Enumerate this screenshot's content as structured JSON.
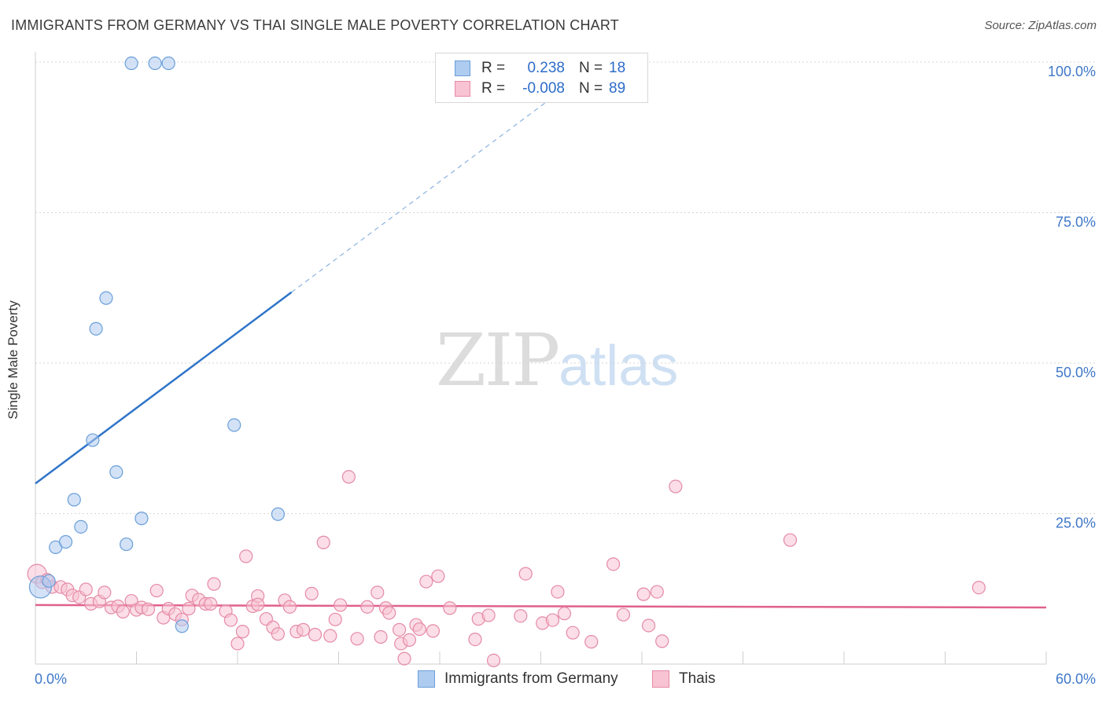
{
  "title": "IMMIGRANTS FROM GERMANY VS THAI SINGLE MALE POVERTY CORRELATION CHART",
  "source": "Source: ZipAtlas.com",
  "watermark": {
    "zip": "ZIP",
    "atlas": "atlas"
  },
  "legend": {
    "rows": [
      {
        "r_label": "R =",
        "r_value": "0.238",
        "n_label": "N =",
        "n_value": "18",
        "color": "#aecbf0",
        "border": "#6a9fd8"
      },
      {
        "r_label": "R =",
        "r_value": "-0.008",
        "n_label": "N =",
        "n_value": "89",
        "color": "#f8c3d3",
        "border": "#e58aa6"
      }
    ]
  },
  "bottom_legend": [
    {
      "label": "Immigrants from Germany",
      "color": "#aecbf0",
      "border": "#6a9fd8"
    },
    {
      "label": "Thais",
      "color": "#f8c3d3",
      "border": "#e58aa6"
    }
  ],
  "chart_data": {
    "type": "scatter",
    "title": "IMMIGRANTS FROM GERMANY VS THAI SINGLE MALE POVERTY CORRELATION CHART",
    "xlabel": "",
    "ylabel": "Single Male Poverty",
    "xlim": [
      0,
      60
    ],
    "ylim": [
      0,
      100
    ],
    "x_tick_labels": [
      "0.0%",
      "60.0%"
    ],
    "y_tick_labels": [
      {
        "value": 25,
        "label": "25.0%"
      },
      {
        "value": 50,
        "label": "50.0%"
      },
      {
        "value": 75,
        "label": "75.0%"
      },
      {
        "value": 100,
        "label": "100.0%"
      }
    ],
    "series": [
      {
        "name": "Immigrants from Germany",
        "color": "#6a9fd8",
        "fill": "#aecbf0",
        "trend": {
          "x0": 0,
          "y0": 30.0,
          "x_solid_end": 15.2,
          "x1": 33.5,
          "y1": 100.0
        },
        "points": [
          [
            0.3,
            12.8,
            14
          ],
          [
            0.8,
            13.8,
            8
          ],
          [
            1.2,
            19.4,
            8
          ],
          [
            1.8,
            20.3,
            8
          ],
          [
            2.3,
            27.3,
            8
          ],
          [
            2.7,
            22.8,
            8
          ],
          [
            3.4,
            37.2,
            8
          ],
          [
            3.6,
            55.7,
            8
          ],
          [
            4.2,
            60.8,
            8
          ],
          [
            4.8,
            31.9,
            8
          ],
          [
            5.4,
            19.9,
            8
          ],
          [
            6.3,
            24.2,
            8
          ],
          [
            5.7,
            99.8,
            8
          ],
          [
            7.1,
            99.8,
            8
          ],
          [
            7.9,
            99.8,
            8
          ],
          [
            8.7,
            6.3,
            8
          ],
          [
            11.8,
            39.7,
            8
          ],
          [
            14.4,
            24.9,
            8
          ]
        ]
      },
      {
        "name": "Thais",
        "color": "#e58aa6",
        "fill": "#f8c3d3",
        "trend": {
          "x0": 0,
          "y0": 9.8,
          "x1": 60,
          "y1": 9.4
        },
        "points": [
          [
            0.1,
            15.0,
            12
          ],
          [
            0.4,
            13.6,
            8
          ],
          [
            0.7,
            14.0,
            8
          ],
          [
            1.0,
            12.8,
            8
          ],
          [
            1.5,
            12.8,
            8
          ],
          [
            1.9,
            12.4,
            8
          ],
          [
            2.2,
            11.4,
            8
          ],
          [
            2.6,
            11.1,
            8
          ],
          [
            3.0,
            12.4,
            8
          ],
          [
            3.3,
            10.0,
            8
          ],
          [
            3.8,
            10.4,
            8
          ],
          [
            4.1,
            11.9,
            8
          ],
          [
            4.5,
            9.4,
            8
          ],
          [
            4.9,
            9.6,
            8
          ],
          [
            5.2,
            8.7,
            8
          ],
          [
            5.7,
            10.5,
            8
          ],
          [
            6.0,
            9.0,
            8
          ],
          [
            6.3,
            9.4,
            8
          ],
          [
            6.7,
            9.1,
            8
          ],
          [
            7.2,
            12.2,
            8
          ],
          [
            7.6,
            7.7,
            8
          ],
          [
            7.9,
            9.2,
            8
          ],
          [
            8.3,
            8.3,
            8
          ],
          [
            8.7,
            7.4,
            8
          ],
          [
            9.1,
            9.2,
            8
          ],
          [
            9.3,
            11.4,
            8
          ],
          [
            9.7,
            10.7,
            8
          ],
          [
            10.1,
            10.0,
            8
          ],
          [
            10.6,
            13.3,
            8
          ],
          [
            10.4,
            10.0,
            8
          ],
          [
            11.3,
            8.8,
            8
          ],
          [
            11.6,
            7.3,
            8
          ],
          [
            12.0,
            3.4,
            8
          ],
          [
            12.3,
            5.4,
            8
          ],
          [
            12.5,
            17.9,
            8
          ],
          [
            12.9,
            9.6,
            8
          ],
          [
            13.2,
            11.3,
            8
          ],
          [
            13.7,
            7.5,
            8
          ],
          [
            14.1,
            6.1,
            8
          ],
          [
            14.4,
            5.0,
            8
          ],
          [
            14.8,
            10.6,
            8
          ],
          [
            15.1,
            9.5,
            8
          ],
          [
            15.5,
            5.4,
            8
          ],
          [
            15.9,
            5.7,
            8
          ],
          [
            16.4,
            11.7,
            8
          ],
          [
            16.6,
            4.9,
            8
          ],
          [
            17.1,
            20.2,
            8
          ],
          [
            17.5,
            4.7,
            8
          ],
          [
            17.8,
            7.4,
            8
          ],
          [
            18.1,
            9.8,
            8
          ],
          [
            18.6,
            31.1,
            8
          ],
          [
            19.1,
            4.2,
            8
          ],
          [
            19.7,
            9.5,
            8
          ],
          [
            20.3,
            11.9,
            8
          ],
          [
            20.5,
            4.5,
            8
          ],
          [
            20.8,
            9.3,
            8
          ],
          [
            21.0,
            8.5,
            8
          ],
          [
            21.6,
            5.7,
            8
          ],
          [
            21.7,
            3.4,
            8
          ],
          [
            21.9,
            0.9,
            8
          ],
          [
            22.2,
            4.0,
            8
          ],
          [
            22.6,
            6.5,
            8
          ],
          [
            22.8,
            5.8,
            8
          ],
          [
            23.2,
            13.7,
            8
          ],
          [
            23.6,
            5.5,
            8
          ],
          [
            23.9,
            14.6,
            8
          ],
          [
            24.6,
            9.3,
            8
          ],
          [
            26.1,
            4.1,
            8
          ],
          [
            26.3,
            7.5,
            8
          ],
          [
            26.9,
            8.1,
            8
          ],
          [
            27.2,
            0.6,
            8
          ],
          [
            28.8,
            8.0,
            8
          ],
          [
            29.1,
            15.0,
            8
          ],
          [
            30.1,
            6.8,
            8
          ],
          [
            30.7,
            7.3,
            8
          ],
          [
            31.0,
            12.0,
            8
          ],
          [
            31.4,
            8.4,
            8
          ],
          [
            31.9,
            5.2,
            8
          ],
          [
            33.0,
            3.7,
            8
          ],
          [
            34.3,
            16.6,
            8
          ],
          [
            34.9,
            8.2,
            8
          ],
          [
            36.1,
            11.6,
            8
          ],
          [
            36.4,
            6.4,
            8
          ],
          [
            36.9,
            12.0,
            8
          ],
          [
            37.2,
            3.8,
            8
          ],
          [
            38.0,
            29.5,
            8
          ],
          [
            44.8,
            20.6,
            8
          ],
          [
            56.0,
            12.7,
            8
          ],
          [
            13.2,
            9.9,
            8
          ]
        ]
      }
    ]
  }
}
